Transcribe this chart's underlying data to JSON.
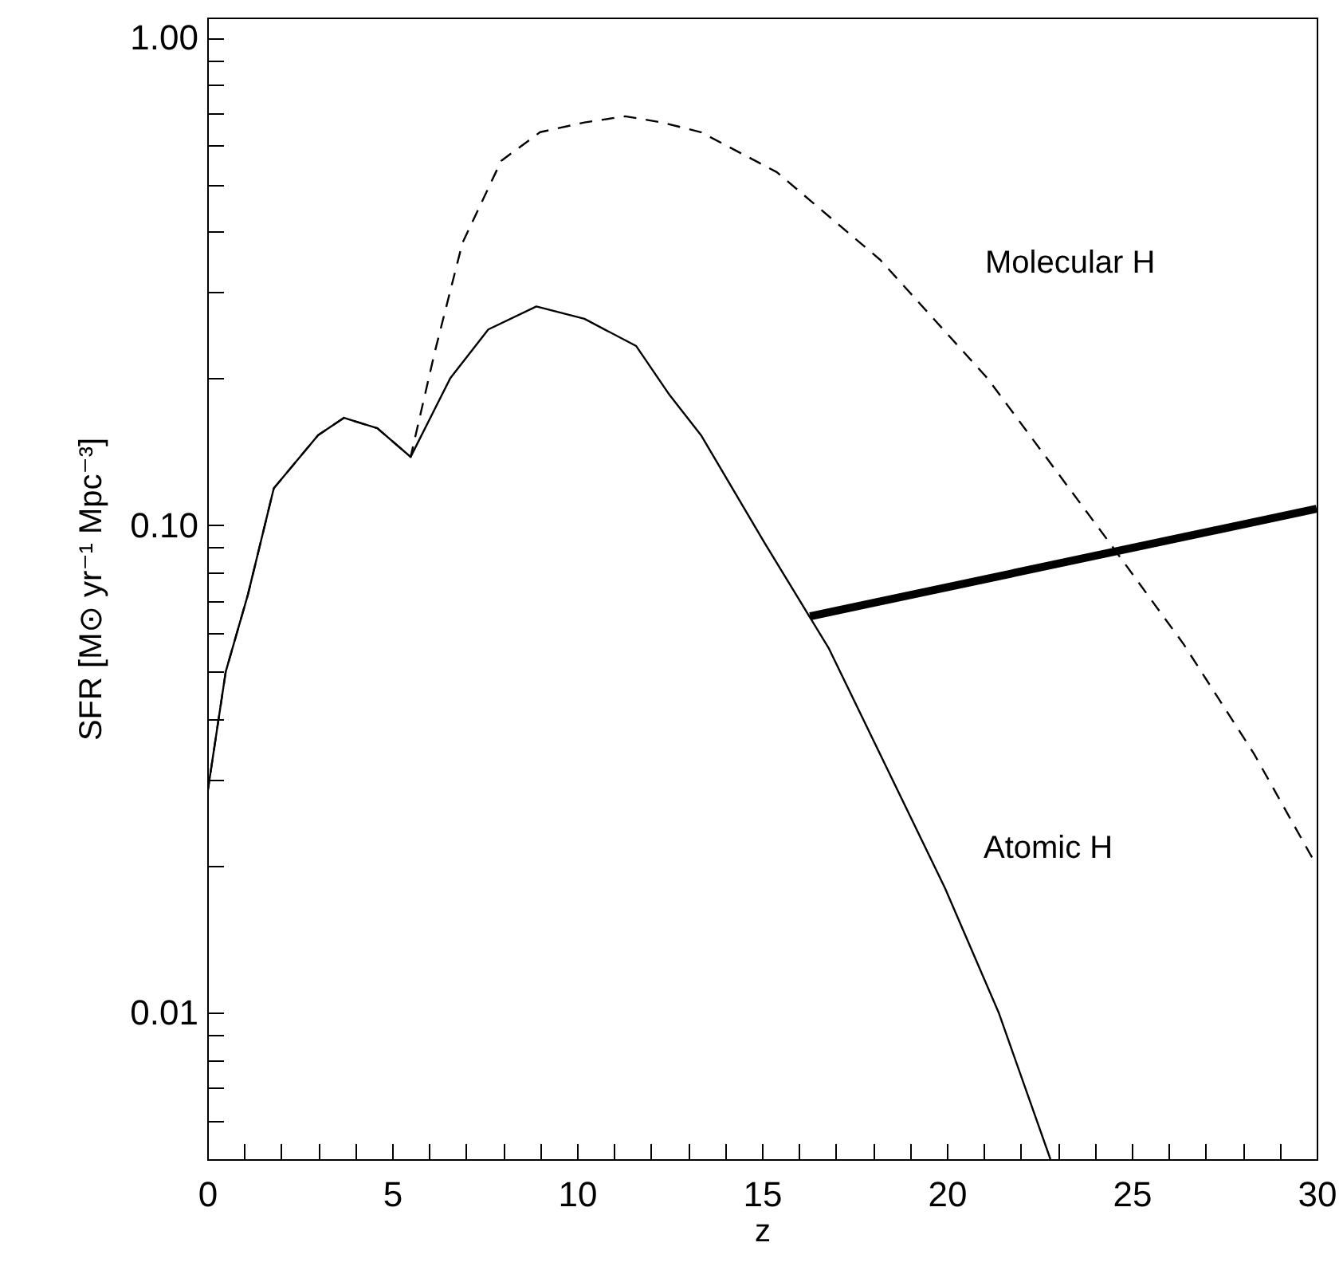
{
  "chart_data": {
    "type": "line",
    "xlabel": "z",
    "ylabel": "SFR [M⊙ yr⁻¹ Mpc⁻³]",
    "log": "y",
    "xlim": [
      0,
      30
    ],
    "ylim": [
      0.005,
      1.1
    ],
    "xticks": [
      0,
      {
        "value": 1,
        "label": null
      },
      {
        "value": 2,
        "label": null
      },
      {
        "value": 3,
        "label": null
      },
      {
        "value": 4,
        "label": null
      },
      5,
      {
        "value": 6,
        "label": null
      },
      {
        "value": 7,
        "label": null
      },
      {
        "value": 8,
        "label": null
      },
      {
        "value": 9,
        "label": null
      },
      10,
      {
        "value": 11,
        "label": null
      },
      {
        "value": 12,
        "label": null
      },
      {
        "value": 13,
        "label": null
      },
      {
        "value": 14,
        "label": null
      },
      15,
      {
        "value": 16,
        "label": null
      },
      {
        "value": 17,
        "label": null
      },
      {
        "value": 18,
        "label": null
      },
      {
        "value": 19,
        "label": null
      },
      20,
      {
        "value": 21,
        "label": null
      },
      {
        "value": 22,
        "label": null
      },
      {
        "value": 23,
        "label": null
      },
      {
        "value": 24,
        "label": null
      },
      25,
      {
        "value": 26,
        "label": null
      },
      {
        "value": 27,
        "label": null
      },
      {
        "value": 28,
        "label": null
      },
      {
        "value": 29,
        "label": null
      },
      30
    ],
    "yticks": [
      {
        "value": 0.006,
        "label": null
      },
      {
        "value": 0.007,
        "label": null
      },
      {
        "value": 0.008,
        "label": null
      },
      {
        "value": 0.009,
        "label": null
      },
      0.01,
      {
        "value": 0.02,
        "label": null
      },
      {
        "value": 0.03,
        "label": null
      },
      {
        "value": 0.04,
        "label": null
      },
      {
        "value": 0.05,
        "label": null
      },
      {
        "value": 0.06,
        "label": null
      },
      {
        "value": 0.07,
        "label": null
      },
      {
        "value": 0.08,
        "label": null
      },
      {
        "value": 0.09,
        "label": null
      },
      {
        "value": 0.1,
        "label": "0.10"
      },
      {
        "value": 0.2,
        "label": null
      },
      {
        "value": 0.3,
        "label": null
      },
      {
        "value": 0.4,
        "label": null
      },
      {
        "value": 0.5,
        "label": null
      },
      {
        "value": 0.6,
        "label": null
      },
      {
        "value": 0.7,
        "label": null
      },
      {
        "value": 0.8,
        "label": null
      },
      {
        "value": 0.9,
        "label": null
      },
      {
        "value": 1,
        "label": "1.00"
      }
    ],
    "grid": false,
    "series": [
      {
        "color": "#000000",
        "line_style": "dashed",
        "x": [
          0,
          0.5,
          1.1,
          1.8,
          3,
          3.7,
          4.6,
          5.5,
          6.15,
          6.9,
          7.95,
          9,
          10.2,
          11.3,
          12.3,
          13.35,
          15.4,
          18.2,
          21.1,
          24.4,
          26.4,
          28.3,
          30
        ],
        "values": [
          0.028,
          0.05,
          0.072,
          0.119,
          0.153,
          0.166,
          0.158,
          0.138,
          0.226,
          0.379,
          0.559,
          0.64,
          0.67,
          0.69,
          0.67,
          0.64,
          0.53,
          0.35,
          0.2,
          0.092,
          0.057,
          0.034,
          0.02
        ]
      },
      {
        "color": "#000000",
        "line_style": "solid",
        "x": [
          0,
          0.5,
          1.1,
          1.8,
          3,
          3.7,
          4.6,
          5.5,
          6.57,
          7.6,
          8.9,
          10.2,
          11.6,
          12.5,
          13.35,
          15.07,
          16.28,
          16.8,
          19.95,
          21.4,
          22.8
        ],
        "values": [
          0.028,
          0.05,
          0.072,
          0.119,
          0.153,
          0.166,
          0.158,
          0.138,
          0.2,
          0.252,
          0.281,
          0.265,
          0.233,
          0.185,
          0.153,
          0.092,
          0.065,
          0.056,
          0.018,
          0.01,
          0.005
        ]
      },
      {
        "color": "#000000",
        "line_style": "solid",
        "x": [
          16.3,
          30
        ],
        "values": [
          0.065,
          0.108
        ]
      }
    ],
    "annotations": [
      "Molecular H",
      "Atomic H"
    ]
  }
}
